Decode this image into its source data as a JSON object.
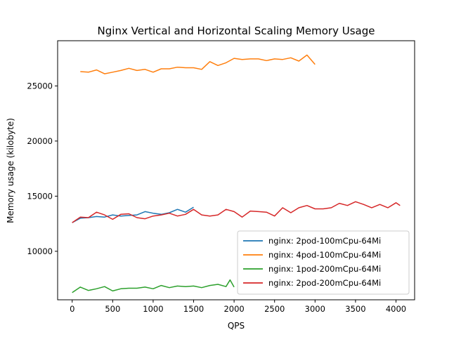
{
  "chart_data": {
    "type": "line",
    "title": "Nginx Vertical and Horizontal Scaling Memory Usage",
    "xlabel": "QPS",
    "ylabel": "Memory usage (kilobyte)",
    "xlim": [
      -180,
      4230
    ],
    "ylim": [
      5600,
      29100
    ],
    "xticks": [
      0,
      500,
      1000,
      1500,
      2000,
      2500,
      3000,
      3500,
      4000
    ],
    "yticks": [
      10000,
      15000,
      20000,
      25000
    ],
    "grid": false,
    "legend_position": "lower-right",
    "series": [
      {
        "name": "nginx: 2pod-100mCpu-64Mi",
        "color": "#1f77b4",
        "x": [
          0,
          100,
          200,
          300,
          400,
          500,
          600,
          700,
          800,
          900,
          1000,
          1100,
          1200,
          1300,
          1400,
          1500
        ],
        "y": [
          12600,
          13000,
          13050,
          13150,
          13100,
          13300,
          13200,
          13250,
          13300,
          13600,
          13450,
          13350,
          13500,
          13800,
          13550,
          14000
        ]
      },
      {
        "name": "nginx: 4pod-100mCpu-64Mi",
        "color": "#ff7f0e",
        "x": [
          100,
          200,
          300,
          400,
          500,
          600,
          700,
          800,
          900,
          1000,
          1100,
          1200,
          1300,
          1400,
          1500,
          1600,
          1700,
          1800,
          1900,
          2000,
          2100,
          2200,
          2300,
          2400,
          2500,
          2600,
          2700,
          2800,
          2900,
          3000
        ],
        "y": [
          26300,
          26250,
          26450,
          26100,
          26250,
          26400,
          26600,
          26400,
          26500,
          26250,
          26550,
          26550,
          26700,
          26650,
          26650,
          26500,
          27200,
          26850,
          27100,
          27500,
          27400,
          27450,
          27450,
          27300,
          27450,
          27400,
          27550,
          27250,
          27800,
          26950
        ]
      },
      {
        "name": "nginx: 1pod-200mCpu-64Mi",
        "color": "#2ca02c",
        "x": [
          0,
          100,
          200,
          300,
          400,
          500,
          600,
          700,
          800,
          900,
          1000,
          1100,
          1200,
          1300,
          1400,
          1500,
          1600,
          1700,
          1800,
          1900,
          1950,
          2000
        ],
        "y": [
          6250,
          6750,
          6450,
          6600,
          6800,
          6400,
          6600,
          6650,
          6650,
          6750,
          6600,
          6900,
          6700,
          6850,
          6800,
          6850,
          6700,
          6900,
          7000,
          6800,
          7400,
          6750
        ]
      },
      {
        "name": "nginx: 2pod-200mCpu-64Mi",
        "color": "#d62728",
        "x": [
          0,
          100,
          200,
          300,
          400,
          500,
          600,
          700,
          800,
          900,
          1000,
          1100,
          1200,
          1300,
          1400,
          1500,
          1600,
          1700,
          1800,
          1900,
          2000,
          2100,
          2200,
          2300,
          2400,
          2500,
          2600,
          2700,
          2800,
          2900,
          3000,
          3100,
          3200,
          3300,
          3400,
          3500,
          3600,
          3700,
          3800,
          3900,
          4000,
          4050
        ],
        "y": [
          12600,
          13100,
          13050,
          13550,
          13300,
          12900,
          13350,
          13400,
          13050,
          12950,
          13200,
          13300,
          13450,
          13200,
          13350,
          13800,
          13300,
          13200,
          13300,
          13800,
          13600,
          13100,
          13650,
          13600,
          13550,
          13200,
          13950,
          13500,
          13950,
          14150,
          13850,
          13850,
          13950,
          14350,
          14150,
          14500,
          14250,
          13950,
          14250,
          13950,
          14400,
          14150
        ]
      }
    ]
  }
}
